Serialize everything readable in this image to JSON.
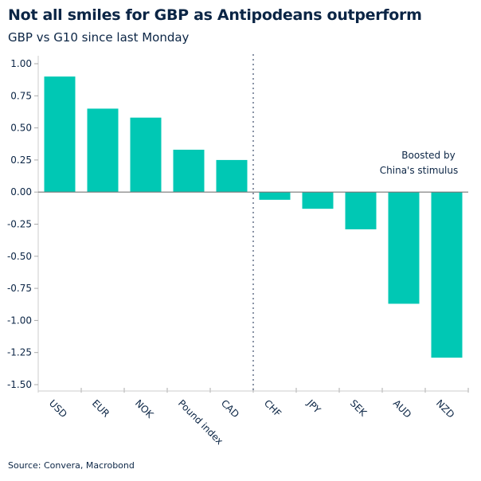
{
  "chart_data": {
    "type": "bar",
    "title": "Not all smiles for GBP as Antipodeans outperform",
    "subtitle": "GBP vs G10 since last Monday",
    "categories": [
      "USD",
      "EUR",
      "NOK",
      "Pound index",
      "CAD",
      "CHF",
      "JPY",
      "SEK",
      "AUD",
      "NZD"
    ],
    "values": [
      0.9,
      0.65,
      0.58,
      0.33,
      0.25,
      -0.06,
      -0.13,
      -0.29,
      -0.87,
      -1.29
    ],
    "ylim": [
      -1.5,
      1.0
    ],
    "yticks": [
      "1.00",
      "0.75",
      "0.50",
      "0.25",
      "0.00",
      "-0.25",
      "-0.50",
      "-0.75",
      "-1.00",
      "-1.25",
      "-1.50"
    ],
    "xlabel": "",
    "ylabel": "",
    "grid": false,
    "bar_color": "#00c8b4",
    "annotation": {
      "line1": "Boosted by",
      "line2": "China's stimulus"
    },
    "divider_after": "CAD",
    "source": "Source: Convera, Macrobond"
  }
}
